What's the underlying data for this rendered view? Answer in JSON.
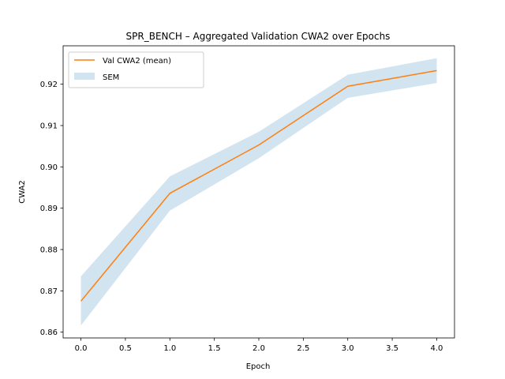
{
  "chart_data": {
    "type": "line",
    "title": "SPR_BENCH – Aggregated Validation CWA2 over Epochs",
    "xlabel": "Epoch",
    "ylabel": "CWA2",
    "xlim": [
      -0.2,
      4.2
    ],
    "ylim": [
      0.8586,
      0.9293
    ],
    "x_ticks": [
      0.0,
      0.5,
      1.0,
      1.5,
      2.0,
      2.5,
      3.0,
      3.5,
      4.0
    ],
    "x_tick_labels": [
      "0.0",
      "0.5",
      "1.0",
      "1.5",
      "2.0",
      "2.5",
      "3.0",
      "3.5",
      "4.0"
    ],
    "y_ticks": [
      0.86,
      0.87,
      0.88,
      0.89,
      0.9,
      0.91,
      0.92
    ],
    "y_tick_labels": [
      "0.86",
      "0.87",
      "0.88",
      "0.89",
      "0.90",
      "0.91",
      "0.92"
    ],
    "grid": false,
    "legend_position": "upper-left",
    "x": [
      0,
      1,
      2,
      3,
      4
    ],
    "series": [
      {
        "name": "Val CWA2 (mean)",
        "values": [
          0.8675,
          0.8936,
          0.9053,
          0.9195,
          0.9233
        ],
        "color": "#ff7f0e"
      }
    ],
    "band": {
      "name": "SEM",
      "lower": [
        0.8616,
        0.8894,
        0.9021,
        0.9167,
        0.9203
      ],
      "upper": [
        0.8735,
        0.8977,
        0.9085,
        0.9223,
        0.9263
      ],
      "color": "#1f77b4",
      "opacity": 0.2
    }
  }
}
